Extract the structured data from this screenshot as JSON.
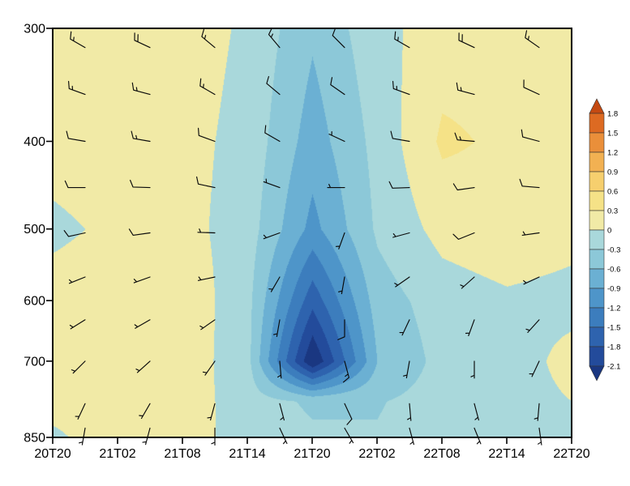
{
  "figure": {
    "background": "#ffffff",
    "kind": "time-pressure cross-section with shaded anomaly field and wind barbs"
  },
  "axes": {
    "x_tick_labels": [
      "20T20",
      "21T02",
      "21T08",
      "21T14",
      "21T20",
      "22T02",
      "22T08",
      "22T14",
      "22T20"
    ],
    "y_tick_labels": [
      "300",
      "400",
      "500",
      "600",
      "700",
      "850"
    ]
  },
  "chart_data": {
    "type": "heatmap",
    "title": "",
    "xlabel": "",
    "ylabel": "",
    "x": [
      "20T20",
      "21T02",
      "21T08",
      "21T14",
      "21T20",
      "22T02",
      "22T08",
      "22T14",
      "22T20"
    ],
    "y_pressure_hpa": [
      300,
      400,
      500,
      600,
      700,
      775,
      850
    ],
    "y_axis_labeled_levels": [
      300,
      400,
      500,
      600,
      700,
      850
    ],
    "y_scale": "log-pressure, 300 hPa at top, 850 hPa at bottom",
    "grid_note": "shaded field values estimated from fill colors; rows follow y_pressure_hpa, cols follow x",
    "grid": [
      [
        0.15,
        0.2,
        0.15,
        -0.05,
        -0.55,
        -0.1,
        0.15,
        0.2,
        0.15
      ],
      [
        0.1,
        0.15,
        0.1,
        -0.1,
        -0.75,
        -0.2,
        0.35,
        0.25,
        0.15
      ],
      [
        -0.05,
        0.05,
        0.1,
        -0.15,
        -1.0,
        -0.25,
        0.1,
        0.2,
        0.1
      ],
      [
        0.1,
        0.15,
        0.2,
        -0.2,
        -1.7,
        -0.45,
        -0.15,
        -0.05,
        -0.1
      ],
      [
        0.15,
        0.15,
        0.18,
        -0.2,
        -2.4,
        -0.6,
        -0.2,
        -0.15,
        0.1
      ],
      [
        0.1,
        0.12,
        0.15,
        -0.15,
        -0.35,
        -0.32,
        -0.18,
        -0.12,
        0.0
      ],
      [
        -0.05,
        0.15,
        0.1,
        -0.1,
        -0.25,
        -0.28,
        -0.15,
        -0.1,
        -0.15
      ]
    ],
    "colorbar": {
      "orientation": "vertical-right",
      "boundaries": [
        1.8,
        1.5,
        1.2,
        0.9,
        0.6,
        0.3,
        0,
        -0.3,
        -0.6,
        -0.9,
        -1.2,
        -1.5,
        -1.8,
        -2.1
      ],
      "labels": [
        "1.8",
        "1.5",
        "1.2",
        "0.9",
        "0.6",
        "0.3",
        "0",
        "-0.3",
        "-0.6",
        "-0.9",
        "-1.2",
        "-1.5",
        "-1.8",
        "-2.1"
      ],
      "colors_top_to_bottom": [
        "#c44a12",
        "#dd6a22",
        "#ea8f3a",
        "#f2b152",
        "#f6cf6e",
        "#f5e287",
        "#f1eaa6",
        "#a9d8db",
        "#8cc8d8",
        "#6bb0d3",
        "#4e95c9",
        "#3c7dbd",
        "#2e63ae",
        "#234b9b",
        "#1a3781"
      ]
    },
    "wind_barbs": {
      "format": [
        "time_index",
        "pressure_hpa",
        "direction_from_deg",
        "speed_kt"
      ],
      "data": [
        [
          0,
          315,
          300,
          15
        ],
        [
          1,
          315,
          295,
          20
        ],
        [
          2,
          315,
          310,
          15
        ],
        [
          3,
          315,
          320,
          15
        ],
        [
          4,
          315,
          315,
          10
        ],
        [
          5,
          315,
          300,
          15
        ],
        [
          6,
          315,
          295,
          20
        ],
        [
          7,
          315,
          305,
          15
        ],
        [
          0,
          355,
          290,
          15
        ],
        [
          1,
          355,
          285,
          15
        ],
        [
          2,
          355,
          300,
          15
        ],
        [
          3,
          355,
          310,
          10
        ],
        [
          4,
          355,
          305,
          10
        ],
        [
          5,
          355,
          290,
          15
        ],
        [
          6,
          355,
          285,
          15
        ],
        [
          7,
          355,
          295,
          10
        ],
        [
          0,
          400,
          280,
          10
        ],
        [
          1,
          400,
          280,
          15
        ],
        [
          2,
          400,
          290,
          10
        ],
        [
          3,
          400,
          300,
          10
        ],
        [
          4,
          400,
          295,
          5
        ],
        [
          5,
          400,
          280,
          10
        ],
        [
          6,
          400,
          275,
          15
        ],
        [
          7,
          400,
          285,
          10
        ],
        [
          0,
          450,
          270,
          10
        ],
        [
          1,
          450,
          272,
          10
        ],
        [
          2,
          450,
          282,
          10
        ],
        [
          3,
          450,
          290,
          5
        ],
        [
          4,
          450,
          270,
          5
        ],
        [
          5,
          450,
          268,
          10
        ],
        [
          6,
          450,
          262,
          10
        ],
        [
          7,
          450,
          275,
          10
        ],
        [
          0,
          505,
          258,
          10
        ],
        [
          1,
          505,
          262,
          10
        ],
        [
          2,
          505,
          272,
          5
        ],
        [
          3,
          505,
          250,
          5
        ],
        [
          4,
          505,
          200,
          5
        ],
        [
          5,
          505,
          255,
          8
        ],
        [
          6,
          505,
          248,
          10
        ],
        [
          7,
          505,
          262,
          8
        ],
        [
          0,
          565,
          248,
          8
        ],
        [
          1,
          565,
          250,
          8
        ],
        [
          2,
          565,
          258,
          5
        ],
        [
          3,
          565,
          210,
          5
        ],
        [
          4,
          565,
          190,
          8
        ],
        [
          5,
          565,
          235,
          5
        ],
        [
          6,
          565,
          228,
          8
        ],
        [
          7,
          565,
          245,
          5
        ],
        [
          0,
          630,
          238,
          8
        ],
        [
          1,
          630,
          240,
          5
        ],
        [
          2,
          630,
          235,
          5
        ],
        [
          3,
          630,
          190,
          5
        ],
        [
          4,
          630,
          180,
          12
        ],
        [
          5,
          630,
          205,
          5
        ],
        [
          6,
          630,
          200,
          5
        ],
        [
          7,
          630,
          222,
          5
        ],
        [
          0,
          700,
          225,
          5
        ],
        [
          1,
          700,
          228,
          5
        ],
        [
          2,
          700,
          215,
          5
        ],
        [
          3,
          700,
          175,
          8
        ],
        [
          4,
          700,
          165,
          15
        ],
        [
          5,
          700,
          190,
          5
        ],
        [
          6,
          700,
          180,
          5
        ],
        [
          7,
          700,
          205,
          5
        ],
        [
          0,
          780,
          205,
          5
        ],
        [
          1,
          780,
          210,
          5
        ],
        [
          2,
          780,
          195,
          5
        ],
        [
          3,
          780,
          165,
          5
        ],
        [
          4,
          780,
          155,
          10
        ],
        [
          5,
          780,
          175,
          5
        ],
        [
          6,
          780,
          165,
          5
        ],
        [
          7,
          780,
          185,
          5
        ],
        [
          0,
          830,
          190,
          5
        ],
        [
          1,
          830,
          195,
          5
        ],
        [
          2,
          830,
          180,
          5
        ],
        [
          3,
          830,
          155,
          5
        ],
        [
          4,
          830,
          150,
          5
        ],
        [
          5,
          830,
          165,
          5
        ],
        [
          6,
          830,
          158,
          5
        ],
        [
          7,
          830,
          172,
          5
        ]
      ]
    }
  }
}
